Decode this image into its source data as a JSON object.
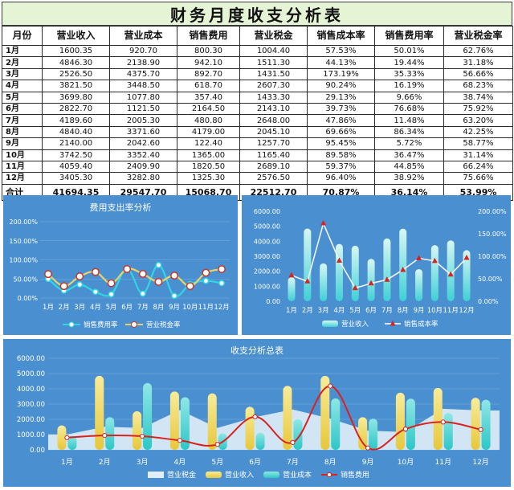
{
  "report_title": "财务月度收支分析表",
  "table": {
    "headers": [
      "月份",
      "营业收入",
      "营业成本",
      "销售费用",
      "营业税金",
      "销售成本率",
      "销售费用率",
      "营业税金率"
    ],
    "rows": [
      [
        "1月",
        "1600.35",
        "920.70",
        "800.30",
        "1004.40",
        "57.53%",
        "50.01%",
        "62.76%"
      ],
      [
        "2月",
        "4846.30",
        "2138.90",
        "942.10",
        "1511.30",
        "44.13%",
        "19.44%",
        "31.18%"
      ],
      [
        "3月",
        "2526.50",
        "4375.70",
        "892.70",
        "1431.50",
        "173.19%",
        "35.33%",
        "56.66%"
      ],
      [
        "4月",
        "3821.50",
        "3448.50",
        "618.70",
        "2607.30",
        "90.24%",
        "16.19%",
        "68.23%"
      ],
      [
        "5月",
        "3699.80",
        "1077.80",
        "357.40",
        "1433.30",
        "29.13%",
        "9.66%",
        "38.74%"
      ],
      [
        "6月",
        "2822.70",
        "1121.50",
        "2164.50",
        "2143.10",
        "39.73%",
        "76.68%",
        "75.92%"
      ],
      [
        "7月",
        "4189.60",
        "2005.30",
        "480.80",
        "2648.00",
        "47.86%",
        "11.48%",
        "63.20%"
      ],
      [
        "8月",
        "4840.40",
        "3371.60",
        "4179.00",
        "2045.10",
        "69.66%",
        "86.34%",
        "42.25%"
      ],
      [
        "9月",
        "2140.00",
        "2042.60",
        "122.40",
        "1257.70",
        "95.45%",
        "5.72%",
        "58.77%"
      ],
      [
        "10月",
        "3742.50",
        "3352.40",
        "1365.00",
        "1165.40",
        "89.58%",
        "36.47%",
        "31.14%"
      ],
      [
        "11月",
        "4059.40",
        "2409.90",
        "1820.50",
        "2689.10",
        "59.37%",
        "44.85%",
        "66.24%"
      ],
      [
        "12月",
        "3405.30",
        "3282.80",
        "1325.30",
        "2576.50",
        "96.40%",
        "38.92%",
        "75.66%"
      ]
    ],
    "total": [
      "合计",
      "41694.35",
      "29547.70",
      "15068.70",
      "22512.70",
      "70.87%",
      "36.14%",
      "53.99%"
    ]
  },
  "colors": {
    "panel_bg": "#4a8fd0",
    "expense_line": "#2fd6e6",
    "tax_line": "#e7d36a",
    "marker_fill": "#ffffff",
    "revenue_bar": "#f2d85e",
    "cost_bar": "#54d8d4",
    "tax_area": "#e0eef8",
    "ratio_line": "#d8221e"
  },
  "chart_data": [
    {
      "type": "line",
      "title": "费用支出率分析",
      "categories": [
        "1月",
        "2月",
        "3月",
        "4月",
        "5月",
        "6月",
        "7月",
        "8月",
        "9月",
        "10月",
        "11月",
        "12月"
      ],
      "series": [
        {
          "name": "销售费用率",
          "values": [
            50.01,
            19.44,
            35.33,
            16.19,
            9.66,
            76.68,
            11.48,
            86.34,
            5.72,
            36.47,
            44.85,
            38.92
          ]
        },
        {
          "name": "营业税金率",
          "values": [
            62.76,
            31.18,
            56.66,
            68.23,
            38.74,
            75.92,
            63.2,
            42.25,
            58.77,
            31.14,
            66.24,
            75.66
          ]
        }
      ],
      "ylim": [
        0,
        200
      ],
      "yticks": [
        "0.00%",
        "50.00%",
        "100.00%",
        "150.00%",
        "200.00%"
      ],
      "legend": "bottom"
    },
    {
      "type": "bar",
      "title": "",
      "categories": [
        "1月",
        "2月",
        "3月",
        "4月",
        "5月",
        "6月",
        "7月",
        "8月",
        "9月",
        "10月",
        "11月",
        "12月"
      ],
      "series": [
        {
          "name": "营业收入",
          "type": "bar",
          "axis": "left",
          "values": [
            1600.35,
            4846.3,
            2526.5,
            3821.5,
            3699.8,
            2822.7,
            4189.6,
            4840.4,
            2140.0,
            3742.5,
            4059.4,
            3405.3
          ]
        },
        {
          "name": "销售成本率",
          "type": "line",
          "axis": "right",
          "values": [
            57.53,
            44.13,
            173.19,
            90.24,
            29.13,
            39.73,
            47.86,
            69.66,
            95.45,
            89.58,
            59.37,
            96.4
          ]
        }
      ],
      "ylim_left": [
        0,
        6000
      ],
      "yticks_left": [
        "0.00",
        "1000.00",
        "2000.00",
        "3000.00",
        "4000.00",
        "5000.00",
        "6000.00"
      ],
      "ylim_right": [
        0,
        200
      ],
      "yticks_right": [
        "0.00%",
        "50.00%",
        "100.00%",
        "150.00%",
        "200.00%"
      ],
      "legend": "bottom"
    },
    {
      "type": "bar",
      "title": "收支分析总表",
      "categories": [
        "1月",
        "2月",
        "3月",
        "4月",
        "5月",
        "6月",
        "7月",
        "8月",
        "9月",
        "10月",
        "11月",
        "12月"
      ],
      "series": [
        {
          "name": "营业税金",
          "type": "area",
          "values": [
            1004.4,
            1511.3,
            1431.5,
            2607.3,
            1433.3,
            2143.1,
            2648.0,
            2045.1,
            1257.7,
            1165.4,
            2689.1,
            2576.5
          ]
        },
        {
          "name": "营业收入",
          "type": "bar",
          "values": [
            1600.35,
            4846.3,
            2526.5,
            3821.5,
            3699.8,
            2822.7,
            4189.6,
            4840.4,
            2140.0,
            3742.5,
            4059.4,
            3405.3
          ]
        },
        {
          "name": "营业成本",
          "type": "bar",
          "values": [
            920.7,
            2138.9,
            4375.7,
            3448.5,
            1077.8,
            1121.5,
            2005.3,
            3371.6,
            2042.6,
            3352.4,
            2409.9,
            3282.8
          ]
        },
        {
          "name": "销售费用",
          "type": "line",
          "values": [
            800.3,
            942.1,
            892.7,
            618.7,
            357.4,
            2164.5,
            480.8,
            4179.0,
            122.4,
            1365.0,
            1820.5,
            1325.3
          ]
        }
      ],
      "ylim": [
        0,
        6000
      ],
      "yticks": [
        "0.00",
        "1000.00",
        "2000.00",
        "3000.00",
        "4000.00",
        "5000.00",
        "6000.00"
      ],
      "legend": "bottom"
    }
  ]
}
